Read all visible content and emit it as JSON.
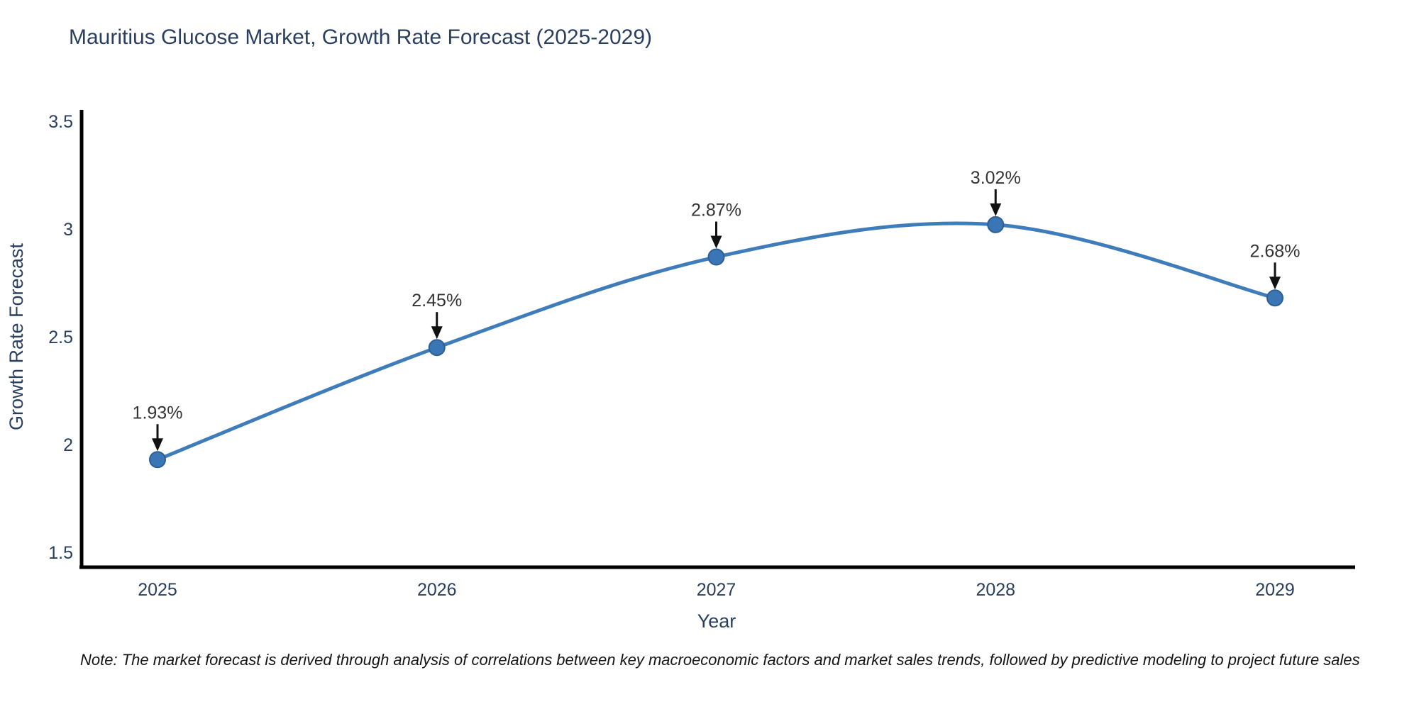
{
  "note": "Note: The market forecast is derived through analysis of correlations between key macroeconomic factors and market sales trends, followed by predictive modeling to project future sales",
  "chart_data": {
    "type": "line",
    "title": "Mauritius Glucose Market, Growth Rate Forecast (2025-2029)",
    "categories": [
      "2025",
      "2026",
      "2027",
      "2028",
      "2029"
    ],
    "values": [
      1.93,
      2.45,
      2.87,
      3.02,
      2.68
    ],
    "point_labels": [
      "1.93%",
      "2.45%",
      "2.87%",
      "3.02%",
      "2.68%"
    ],
    "xlabel": "Year",
    "ylabel": "Growth Rate Forecast",
    "ylim": [
      1.5,
      3.5
    ],
    "yticks": [
      3.5,
      3,
      2.5,
      2,
      1.5
    ],
    "ytick_labels": [
      "3.5",
      "3",
      "2.5",
      "2",
      "1.5"
    ],
    "line_shape": "spline",
    "grid": false,
    "legend": "none",
    "colors": {
      "line": "#3f7cba",
      "marker_fill": "#3a76b5",
      "marker_edge": "#2d5f94",
      "axis_line": "#000000",
      "axis_text": "#2a3f5f",
      "annotation_text": "#333333",
      "arrow": "#111111",
      "background": "#ffffff"
    }
  }
}
